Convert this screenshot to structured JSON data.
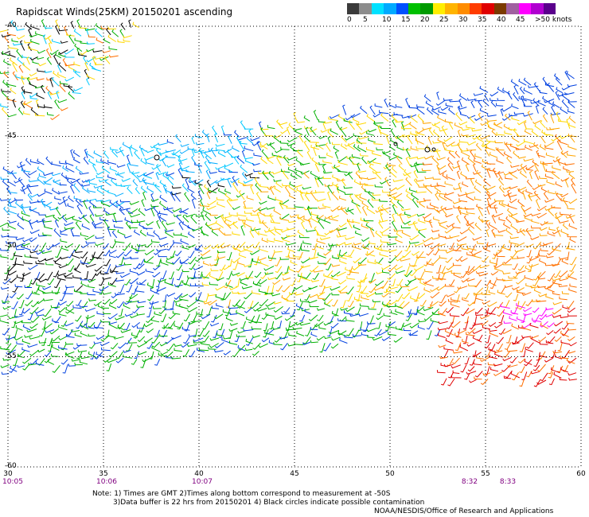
{
  "header": {
    "title": "Rapidscat Winds(25KM) 20150201 ascending"
  },
  "legend": {
    "labels": [
      "0",
      "5",
      "10",
      "15",
      "20",
      "25",
      "30",
      "35",
      "40",
      "45",
      ">50 knots"
    ],
    "colors": [
      "#3a3a3a",
      "#8c8c8c",
      "#00e1ff",
      "#00aaff",
      "#0050ff",
      "#00c000",
      "#009a00",
      "#ffee00",
      "#ffb400",
      "#ff8c00",
      "#ff3c00",
      "#e00000",
      "#7b3a00",
      "#a060a0",
      "#ff00ff",
      "#b000d0",
      "#5a008c"
    ]
  },
  "axes": {
    "x_ticks": [
      "30",
      "35",
      "40",
      "45",
      "50",
      "55",
      "60"
    ],
    "y_ticks": [
      "-40",
      "-45",
      "-50",
      "-55",
      "-60"
    ],
    "x_range": [
      30,
      60
    ],
    "y_range": [
      -40,
      -60
    ]
  },
  "pass_times": [
    {
      "lon": 30,
      "label": "10:05"
    },
    {
      "lon": 35,
      "label": "10:06"
    },
    {
      "lon": 40,
      "label": "10:07"
    },
    {
      "lon": 54,
      "label": "8:32"
    },
    {
      "lon": 56,
      "label": "8:33"
    }
  ],
  "notes": {
    "line1": "Note: 1) Times are GMT 2)Times along bottom correspond to measurement at -50S",
    "line2": "3)Data buffer is 22 hrs from 20150201 4) Black circles indicate possible contamination",
    "credit": "NOAA/NESDIS/Office of Research and Applications"
  },
  "wind_field": {
    "swaths": [
      {
        "name": "upper-left swath",
        "lon": [
          30,
          37.5
        ],
        "lat": [
          -40,
          -44.5
        ],
        "speed": "mixed 0-30 knots"
      },
      {
        "name": "main swath",
        "lon": [
          30,
          60
        ],
        "lat": [
          -42,
          -57.5
        ],
        "speed": "mostly 10-30 knots"
      },
      {
        "name": "south-east swath",
        "lon": [
          53,
          60
        ],
        "lat": [
          -55,
          -57.5
        ],
        "speed": "30-45 knots"
      }
    ]
  }
}
